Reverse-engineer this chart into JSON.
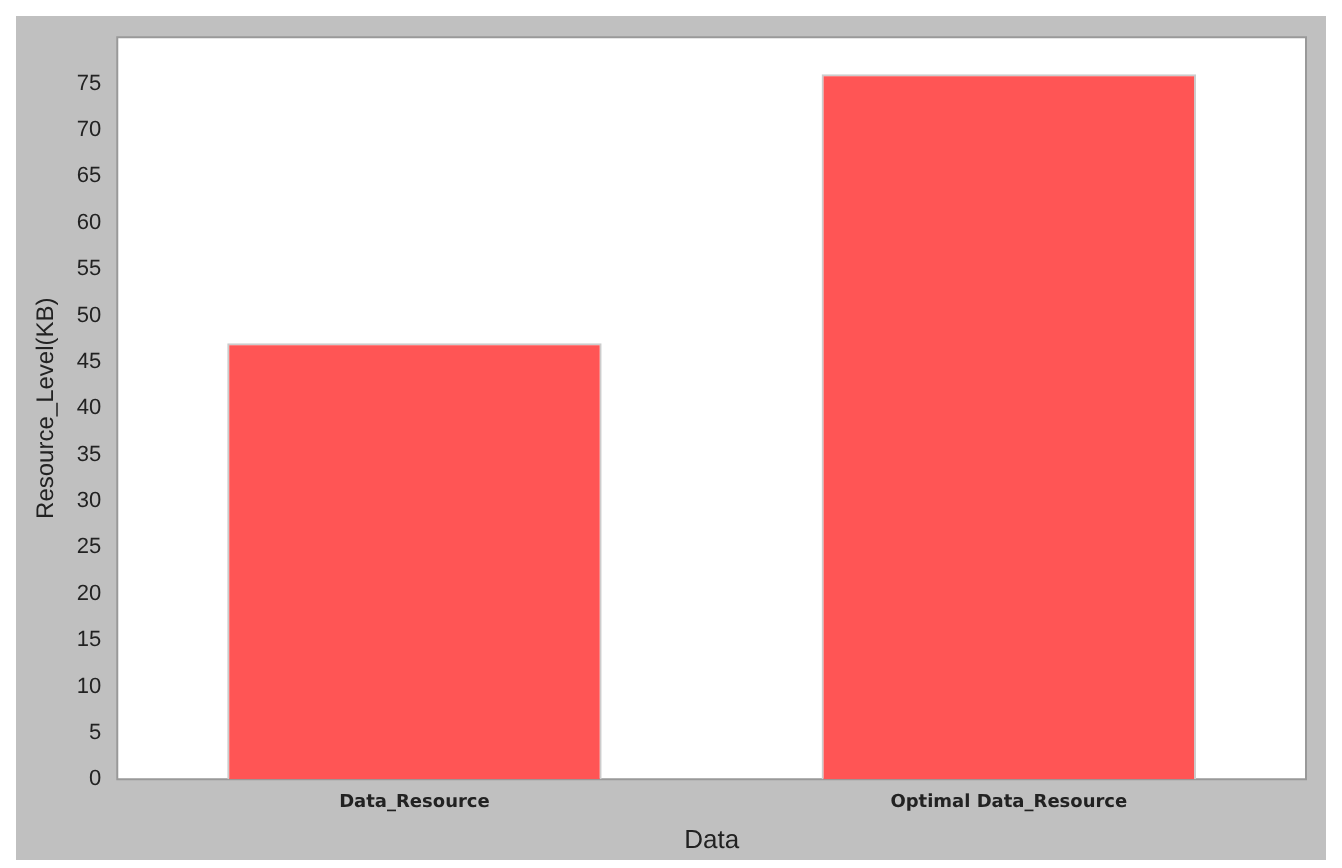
{
  "chart_data": {
    "type": "bar",
    "xlabel": "Data",
    "ylabel": "Resource_Level(KB)",
    "categories": [
      "Data_Resource",
      "Optimal Data_Resource"
    ],
    "values": [
      47,
      76
    ],
    "color": "#ff5555",
    "ylim": [
      0,
      80
    ],
    "yticks": [
      0,
      5,
      10,
      15,
      20,
      25,
      30,
      35,
      40,
      45,
      50,
      55,
      60,
      65,
      70,
      75
    ],
    "grid": false,
    "legend": false
  }
}
